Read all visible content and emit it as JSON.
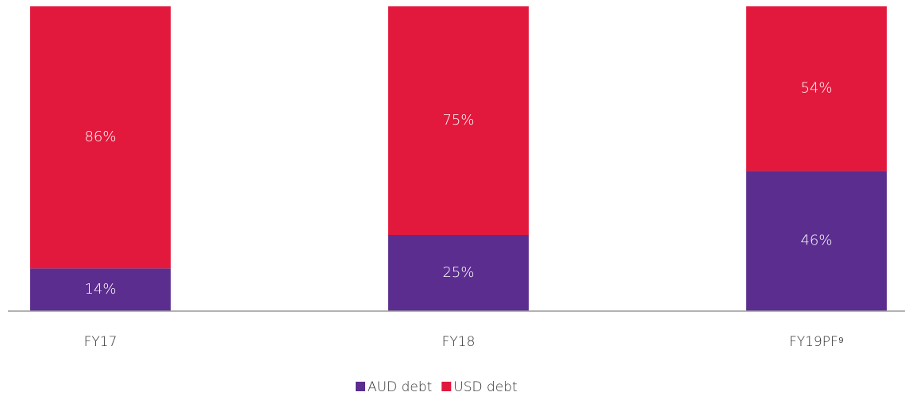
{
  "chart_data": {
    "type": "stacked_bar",
    "categories": [
      "FY17",
      "FY18",
      "FY19PF⁹"
    ],
    "series": [
      {
        "name": "AUD debt",
        "color": "#5b2d8e",
        "values": [
          14,
          25,
          46
        ],
        "value_labels": [
          "14%",
          "25%",
          "46%"
        ]
      },
      {
        "name": "USD debt",
        "color": "#e2193d",
        "values": [
          86,
          75,
          54
        ],
        "value_labels": [
          "86%",
          "75%",
          "54%"
        ]
      }
    ],
    "ylim": [
      0,
      100
    ]
  }
}
